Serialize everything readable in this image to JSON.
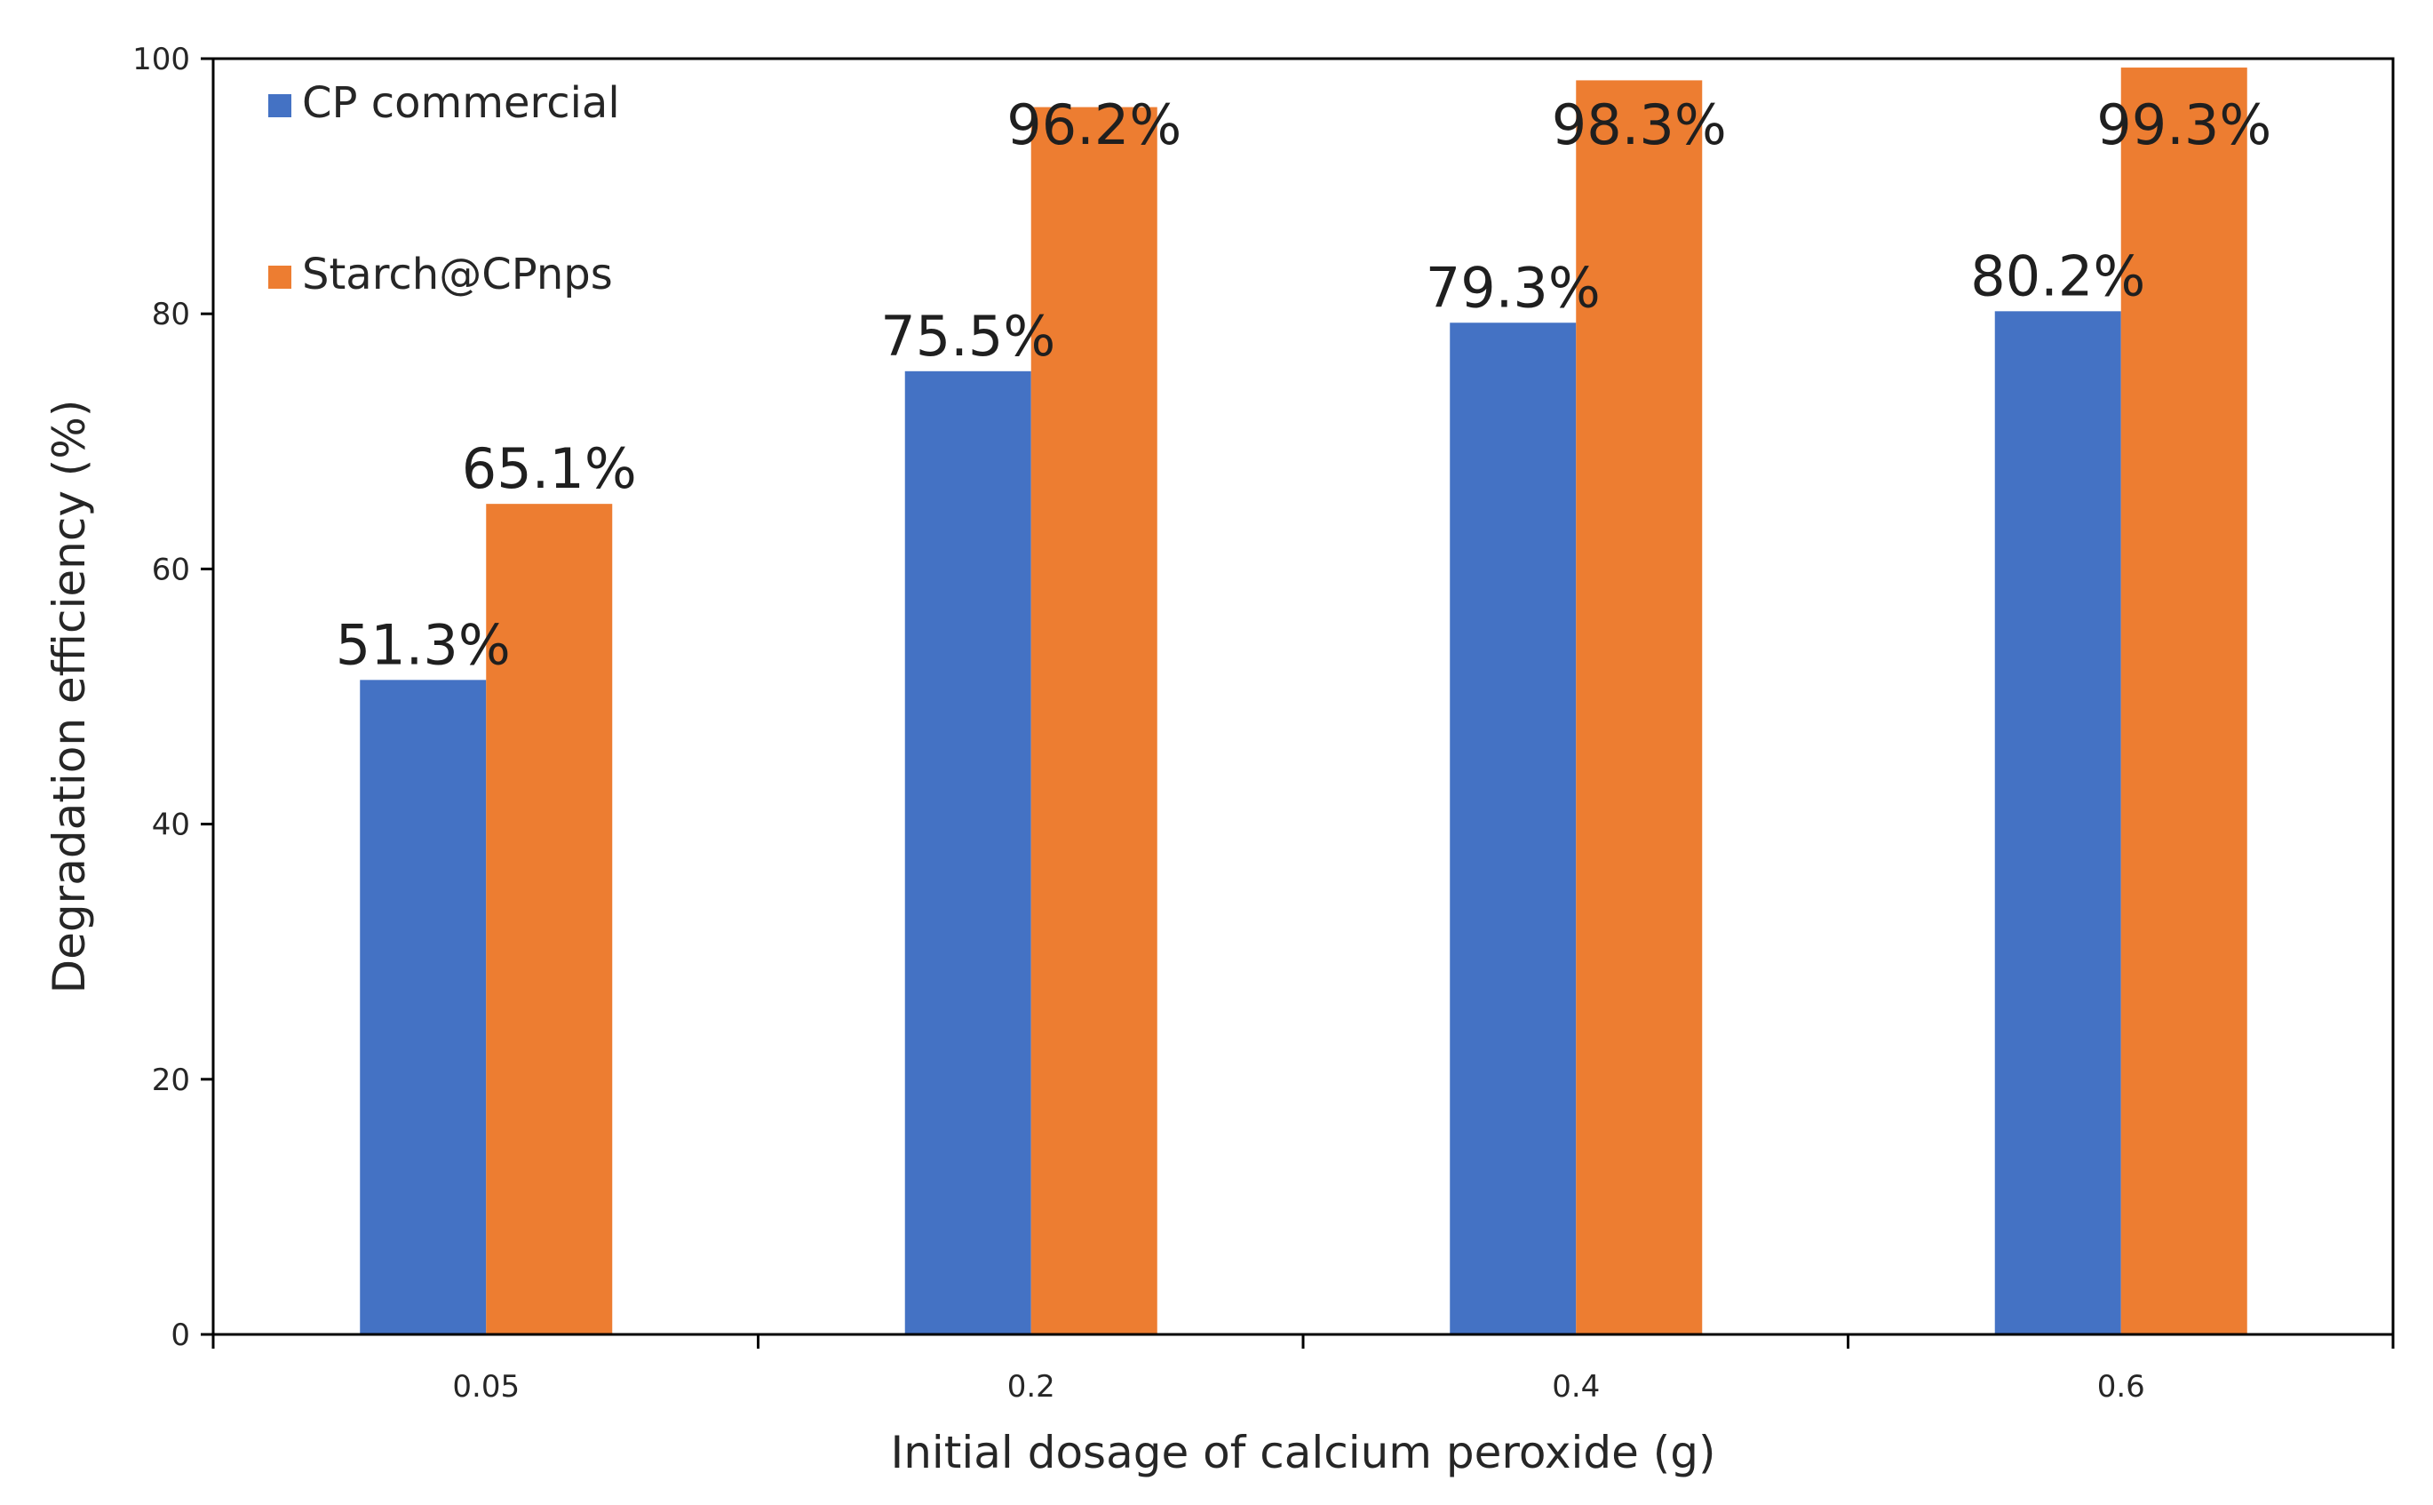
{
  "chart_data": {
    "type": "bar",
    "title": "",
    "xlabel": "Initial dosage of calcium peroxide (g)",
    "ylabel": "Degradation efficiency (%)",
    "ylim": [
      0,
      100
    ],
    "yticks": [
      0,
      20,
      40,
      60,
      80,
      100
    ],
    "ytick_labels": [
      "0",
      "20",
      "40",
      "60",
      "80",
      "100"
    ],
    "categories": [
      "0.05",
      "0.2",
      "0.4",
      "0.6"
    ],
    "grid": false,
    "legend_position": "top-left",
    "series": [
      {
        "name": "CP commercial",
        "values": [
          51.3,
          75.5,
          79.3,
          80.2
        ],
        "labels": [
          "51.3%",
          "75.5%",
          "79.3%",
          "80.2%"
        ],
        "color": "#4472C4"
      },
      {
        "name": "Starch@CPnps",
        "values": [
          65.1,
          96.2,
          98.3,
          99.3
        ],
        "labels": [
          "65.1%",
          "96.2%",
          "98.3%",
          "99.3%"
        ],
        "color": "#ED7D31"
      }
    ]
  }
}
